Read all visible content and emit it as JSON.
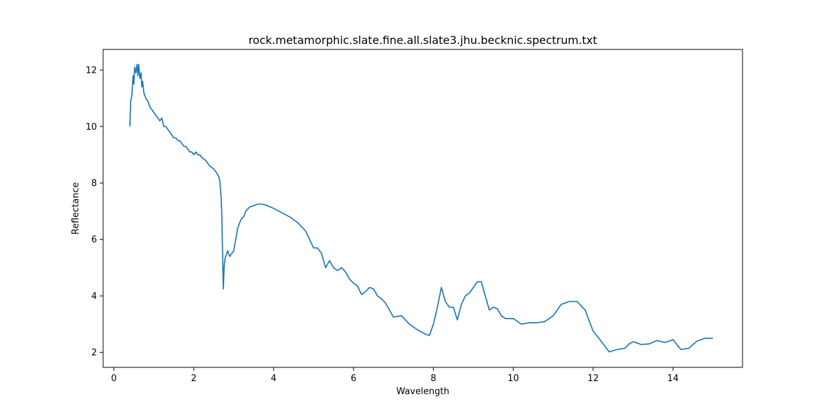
{
  "chart_data": {
    "type": "line",
    "title": "rock.metamorphic.slate.fine.all.slate3.jhu.becknic.spectrum.txt",
    "xlabel": "Wavelength",
    "ylabel": "Reflectance",
    "xlim": [
      -0.27,
      15.74
    ],
    "ylim": [
      1.47,
      12.73
    ],
    "xticks": [
      0,
      2,
      4,
      6,
      8,
      10,
      12,
      14
    ],
    "yticks": [
      2,
      4,
      6,
      8,
      10,
      12
    ],
    "grid": false,
    "line_color": "#1f77b4",
    "series": [
      {
        "x": [
          0.4,
          0.42,
          0.45,
          0.48,
          0.5,
          0.52,
          0.55,
          0.58,
          0.6,
          0.62,
          0.65,
          0.68,
          0.7,
          0.72,
          0.75,
          0.8,
          0.85,
          0.9,
          0.95,
          1.0,
          1.05,
          1.1,
          1.15,
          1.2,
          1.25,
          1.3,
          1.35,
          1.4,
          1.45,
          1.5,
          1.55,
          1.6,
          1.65,
          1.7,
          1.75,
          1.8,
          1.85,
          1.9,
          1.95,
          2.0,
          2.05,
          2.1,
          2.15,
          2.2,
          2.3,
          2.4,
          2.5,
          2.55,
          2.6,
          2.63,
          2.65,
          2.68,
          2.7,
          2.72,
          2.74,
          2.76,
          2.78,
          2.8,
          2.85,
          2.9,
          2.95,
          3.0,
          3.05,
          3.1,
          3.15,
          3.2,
          3.25,
          3.3,
          3.4,
          3.5,
          3.6,
          3.7,
          3.8,
          4.0,
          4.2,
          4.4,
          4.6,
          4.8,
          4.9,
          5.0,
          5.1,
          5.2,
          5.3,
          5.4,
          5.5,
          5.6,
          5.7,
          5.8,
          5.9,
          6.0,
          6.1,
          6.2,
          6.3,
          6.4,
          6.5,
          6.6,
          6.7,
          6.8,
          7.0,
          7.2,
          7.4,
          7.6,
          7.8,
          7.9,
          8.0,
          8.1,
          8.2,
          8.3,
          8.4,
          8.5,
          8.6,
          8.7,
          8.8,
          8.9,
          9.0,
          9.1,
          9.2,
          9.3,
          9.4,
          9.5,
          9.6,
          9.7,
          9.8,
          10.0,
          10.2,
          10.4,
          10.6,
          10.8,
          11.0,
          11.2,
          11.4,
          11.6,
          11.8,
          12.0,
          12.2,
          12.4,
          12.6,
          12.8,
          12.9,
          13.0,
          13.2,
          13.4,
          13.6,
          13.8,
          14.0,
          14.2,
          14.4,
          14.6,
          14.8,
          15.0
        ],
        "y": [
          10.0,
          10.9,
          11.1,
          11.8,
          11.5,
          12.1,
          11.9,
          12.2,
          11.8,
          12.2,
          11.7,
          11.9,
          11.4,
          11.6,
          11.2,
          11.0,
          10.9,
          10.7,
          10.6,
          10.5,
          10.4,
          10.3,
          10.2,
          10.3,
          10.0,
          10.0,
          9.9,
          9.8,
          9.7,
          9.6,
          9.6,
          9.5,
          9.5,
          9.4,
          9.3,
          9.3,
          9.2,
          9.1,
          9.1,
          9.0,
          9.1,
          9.0,
          9.0,
          8.9,
          8.8,
          8.6,
          8.5,
          8.4,
          8.3,
          8.2,
          8.1,
          7.6,
          7.0,
          5.6,
          4.25,
          5.0,
          5.3,
          5.4,
          5.6,
          5.4,
          5.5,
          5.6,
          6.0,
          6.4,
          6.6,
          6.75,
          6.8,
          7.0,
          7.15,
          7.2,
          7.25,
          7.25,
          7.22,
          7.1,
          6.95,
          6.8,
          6.6,
          6.3,
          6.0,
          5.7,
          5.7,
          5.5,
          5.0,
          5.25,
          5.0,
          4.9,
          5.0,
          4.85,
          4.6,
          4.45,
          4.35,
          4.05,
          4.15,
          4.3,
          4.25,
          4.0,
          3.9,
          3.75,
          3.25,
          3.3,
          3.0,
          2.8,
          2.65,
          2.6,
          3.0,
          3.6,
          4.3,
          3.8,
          3.6,
          3.6,
          3.15,
          3.7,
          4.0,
          4.1,
          4.3,
          4.5,
          4.5,
          4.0,
          3.5,
          3.6,
          3.55,
          3.3,
          3.2,
          3.2,
          3.0,
          3.05,
          3.05,
          3.1,
          3.3,
          3.7,
          3.8,
          3.8,
          3.5,
          2.75,
          2.4,
          2.02,
          2.1,
          2.15,
          2.3,
          2.38,
          2.28,
          2.3,
          2.42,
          2.35,
          2.45,
          2.1,
          2.15,
          2.4,
          2.5,
          2.5
        ]
      }
    ]
  }
}
